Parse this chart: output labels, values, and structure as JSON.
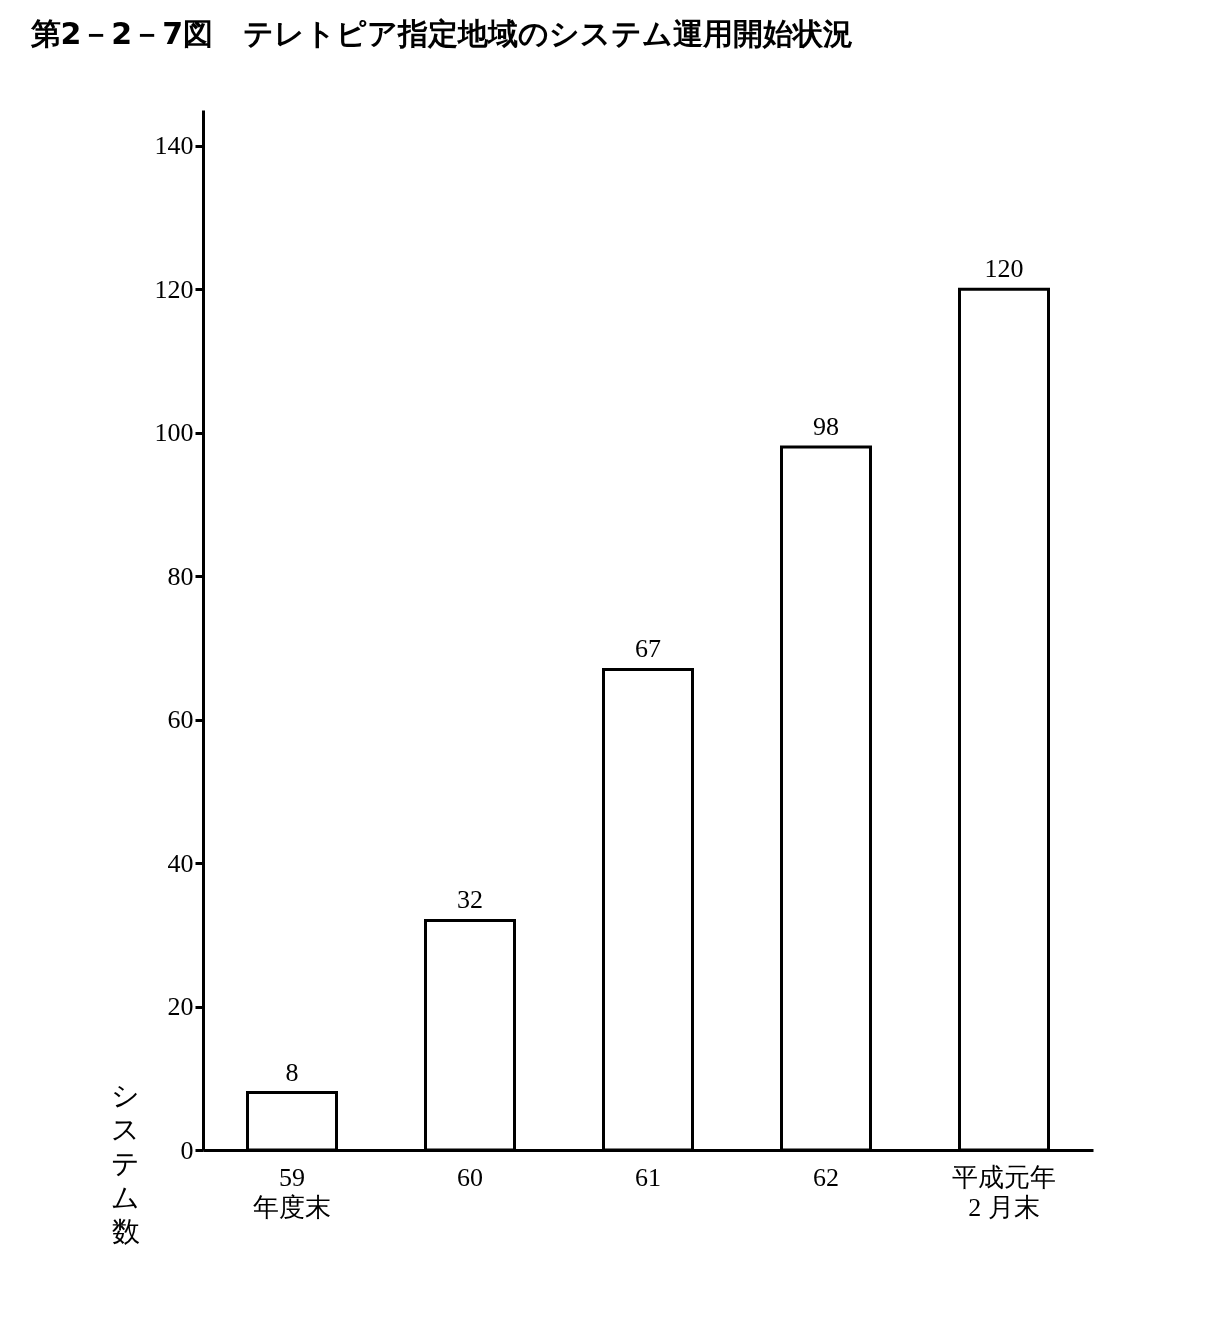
{
  "chart_data": {
    "type": "bar",
    "title": "第2－2－7図　テレトピア指定地域のシステム運用開始状況",
    "ylabel": "システム数",
    "categories": [
      "59\n年度末",
      "60",
      "61",
      "62",
      "平成元年\n2 月末"
    ],
    "values": [
      8,
      32,
      67,
      98,
      120
    ],
    "color": "#ffffff",
    "ylim": [
      0,
      145
    ],
    "yticks": [
      0,
      20,
      40,
      60,
      80,
      100,
      120,
      140
    ],
    "grid": false,
    "data_labels": true
  }
}
